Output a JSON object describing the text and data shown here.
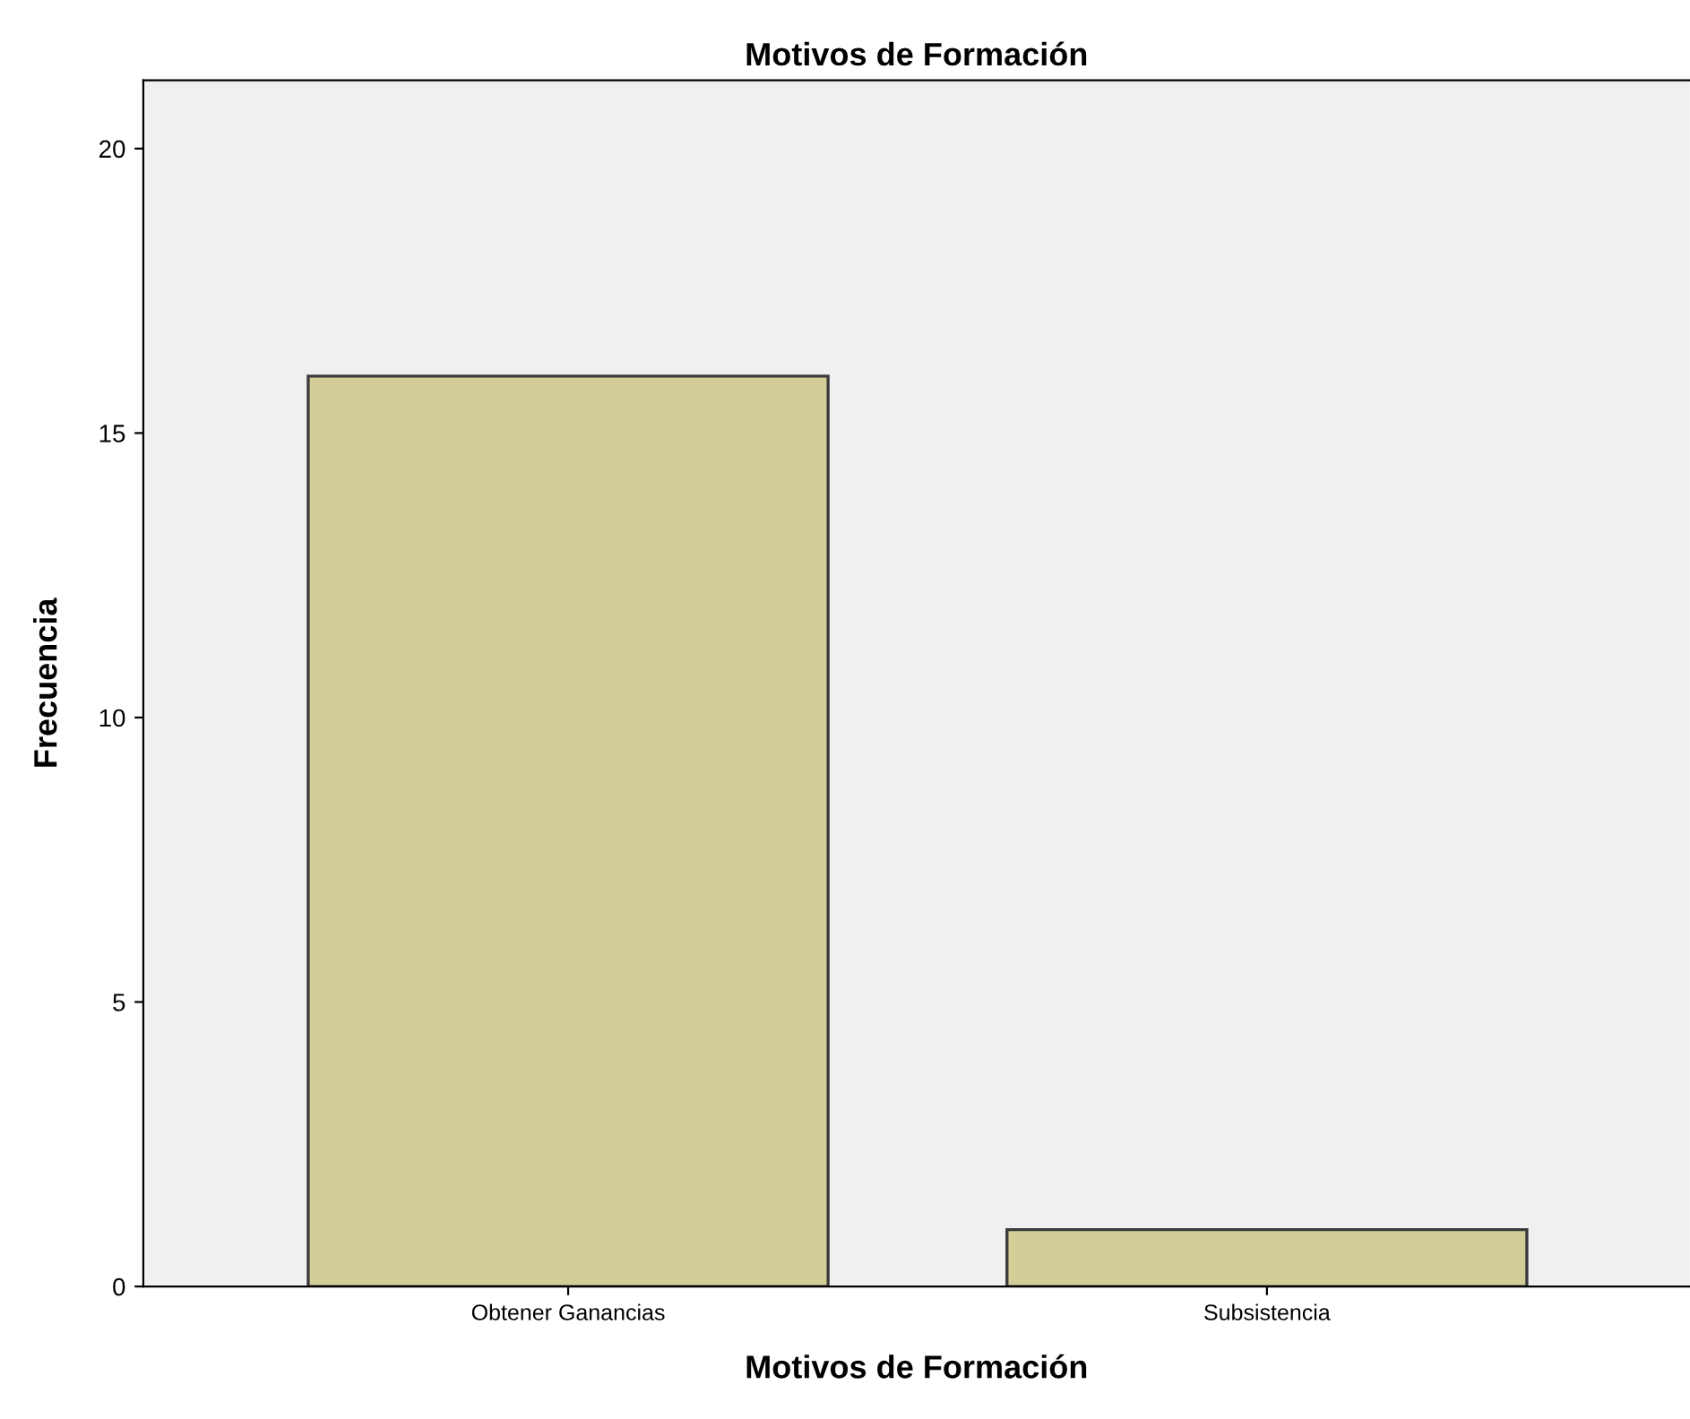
{
  "chart_data": {
    "type": "bar",
    "title": "Motivos de Formación",
    "xlabel": "Motivos de Formación",
    "ylabel": "Frecuencia",
    "categories": [
      "Obtener Ganancias",
      "Subsistencia"
    ],
    "values": [
      16,
      1
    ],
    "color": "#d3cd98",
    "ylim": [
      0,
      21.2
    ],
    "yticks": [
      0,
      5,
      10,
      15,
      20
    ],
    "grid": false,
    "legend": false
  }
}
